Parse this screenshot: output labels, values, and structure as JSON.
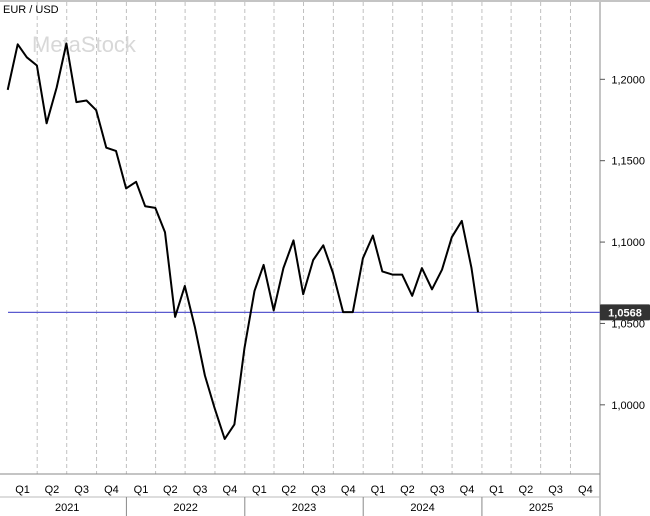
{
  "chart_data": {
    "type": "line",
    "title": "EUR / USD",
    "watermark": "MetaStock",
    "y_ticks": [
      "1,2000",
      "1,1500",
      "1,1000",
      "1,0500",
      "1,0000"
    ],
    "y_tick_values": [
      1.2,
      1.15,
      1.1,
      1.05,
      1.0
    ],
    "ylim": [
      0.9575,
      1.2475
    ],
    "x_start": "2021-01-01",
    "x_end": "2025-12-31",
    "quarter_labels": [
      "Q1",
      "Q2",
      "Q3",
      "Q4",
      "Q1",
      "Q2",
      "Q3",
      "Q4",
      "Q1",
      "Q2",
      "Q3",
      "Q4",
      "Q1",
      "Q2",
      "Q3",
      "Q4",
      "Q1",
      "Q2",
      "Q3",
      "Q4"
    ],
    "year_labels": [
      "2021",
      "2022",
      "2023",
      "2024",
      "2025"
    ],
    "grid": "vertical-dashed",
    "current_value": 1.0568,
    "current_label": "1,0568",
    "colors": {
      "line": "#000000",
      "reference": "#5a5acf",
      "label_bg": "#333333",
      "grid": "#c0c0c0"
    },
    "series": [
      {
        "x": [
          "2020-12-31",
          "2021-01-31",
          "2021-02-28",
          "2021-03-31",
          "2021-04-30",
          "2021-05-31",
          "2021-06-30",
          "2021-07-31",
          "2021-08-31",
          "2021-09-30",
          "2021-10-31",
          "2021-11-30",
          "2021-12-31",
          "2022-01-31",
          "2022-02-28",
          "2022-03-31",
          "2022-04-30",
          "2022-05-31",
          "2022-06-30",
          "2022-07-31",
          "2022-08-31",
          "2022-09-30",
          "2022-10-31",
          "2022-11-30",
          "2022-12-31",
          "2023-01-31",
          "2023-02-28",
          "2023-03-31",
          "2023-04-30",
          "2023-05-31",
          "2023-06-30",
          "2023-07-31",
          "2023-08-31",
          "2023-09-30",
          "2023-10-31",
          "2023-11-30",
          "2023-12-31",
          "2024-01-31",
          "2024-02-29",
          "2024-03-31",
          "2024-04-30",
          "2024-05-31",
          "2024-06-30",
          "2024-07-31",
          "2024-08-31",
          "2024-09-30",
          "2024-10-31",
          "2024-11-30",
          "2024-12-20"
        ],
        "values": [
          1.1935,
          1.2215,
          1.2135,
          1.2085,
          1.173,
          1.195,
          1.222,
          1.186,
          1.187,
          1.181,
          1.158,
          1.156,
          1.133,
          1.137,
          1.122,
          1.121,
          1.106,
          1.054,
          1.073,
          1.048,
          1.018,
          0.998,
          0.979,
          0.988,
          1.035,
          1.07,
          1.086,
          1.058,
          1.084,
          1.101,
          1.068,
          1.089,
          1.098,
          1.081,
          1.057,
          1.057,
          1.09,
          1.104,
          1.082,
          1.08,
          1.08,
          1.067,
          1.084,
          1.071,
          1.083,
          1.103,
          1.113,
          1.084,
          1.057
        ]
      }
    ]
  }
}
